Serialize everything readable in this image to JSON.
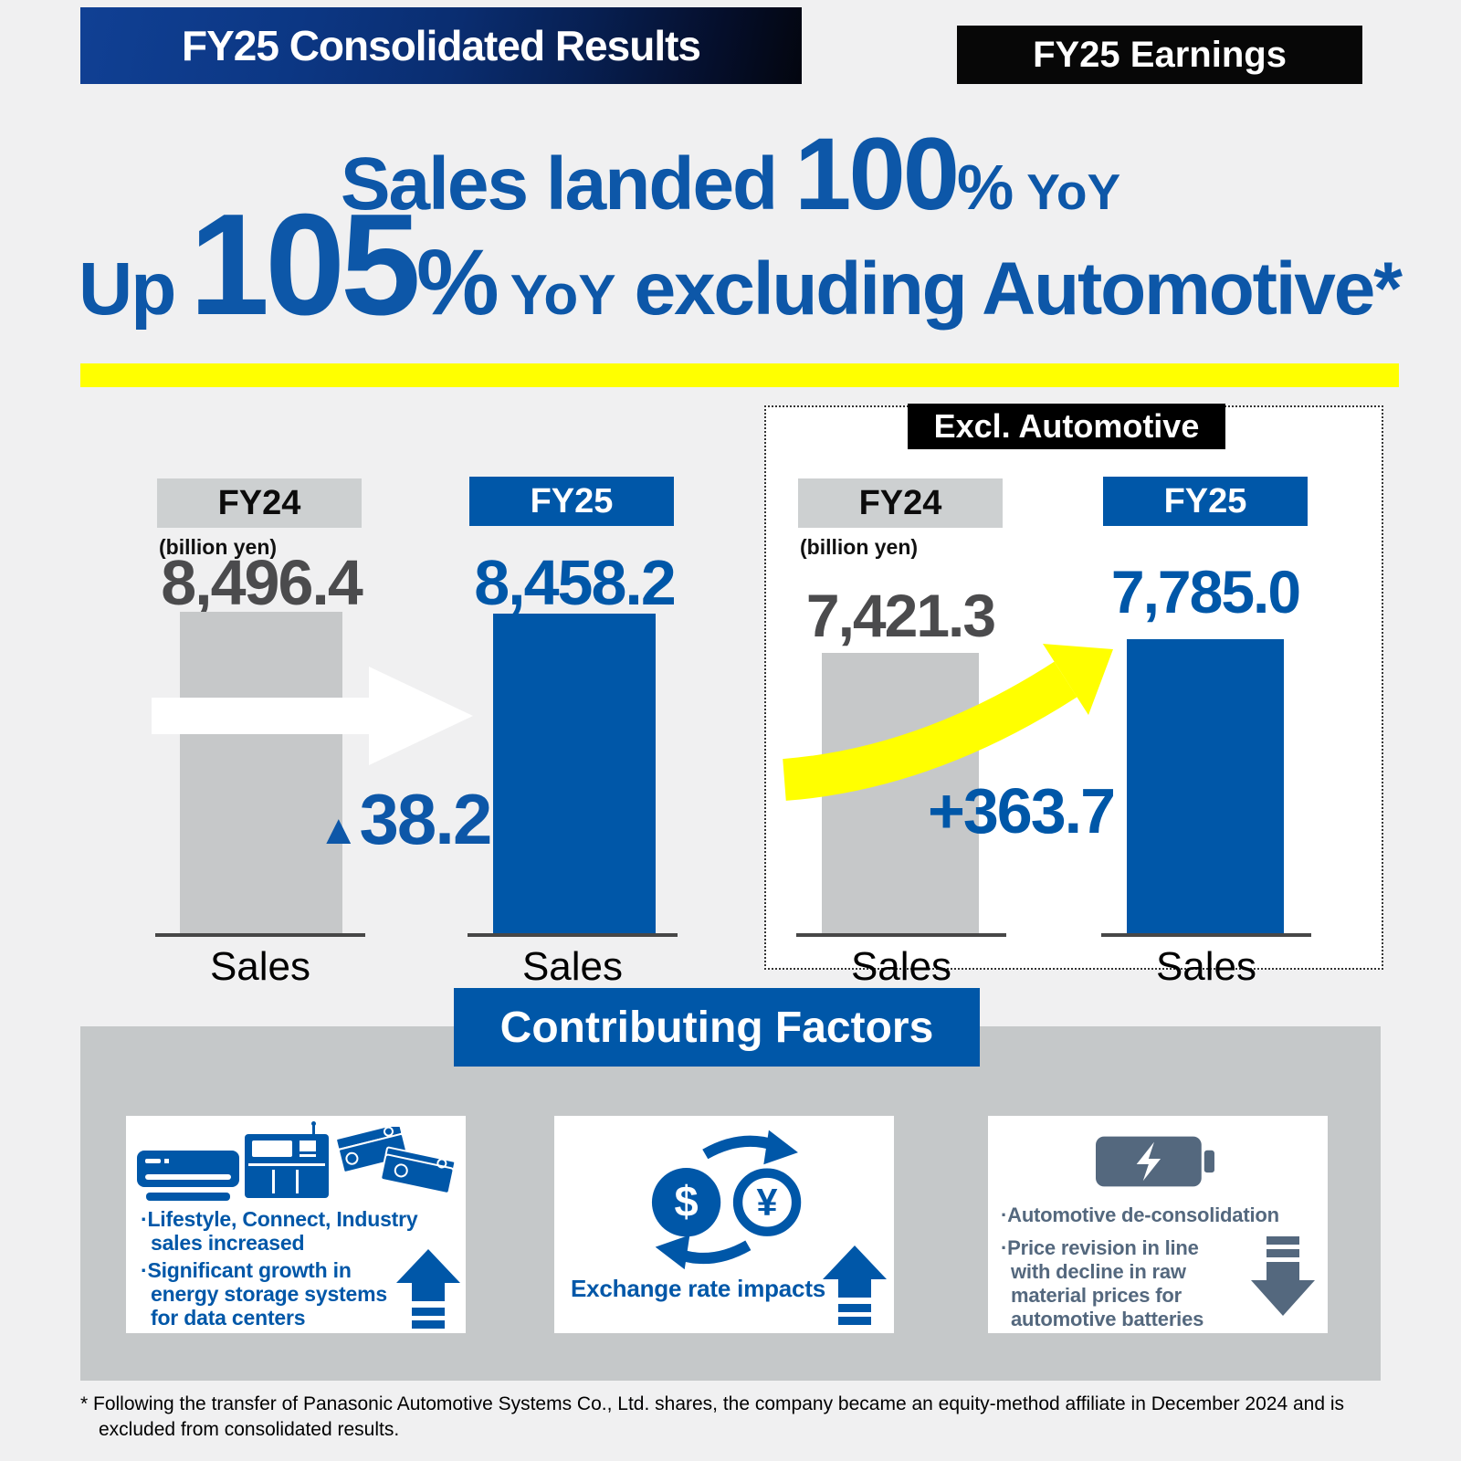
{
  "colors": {
    "accent_blue": "#0057a8",
    "headline_blue": "#0d57a8",
    "highlight_yellow": "#ffff00",
    "bar_gray": "#c6c8c9",
    "value_gray": "#4b4b4d",
    "slate": "#54687e",
    "band_gray": "#c5c8c9",
    "banner_navy_gradient": [
      "#104094",
      "#03060f"
    ]
  },
  "header": {
    "banner_title": "FY25 Consolidated Results",
    "badge": "FY25 Earnings"
  },
  "headline": {
    "line1_pre": "Sales landed",
    "line1_value": "100",
    "line1_pct": "%",
    "line1_yoy": "YoY",
    "line2_up": "Up",
    "line2_value": "105",
    "line2_pct": "%",
    "line2_yoy": "YoY",
    "line2_rest": "excluding Automotive*"
  },
  "charts": {
    "consolidated": {
      "col1_tag": "FY24",
      "col2_tag": "FY25",
      "unit": "(billion yen)",
      "col1_value": "8,496.4",
      "col2_value": "8,458.2",
      "delta_mark": "▲",
      "delta_value": "38.2",
      "col1_axis": "Sales",
      "col2_axis": "Sales"
    },
    "excl_automotive": {
      "title": "Excl. Automotive",
      "col1_tag": "FY24",
      "col2_tag": "FY25",
      "unit": "(billion yen)",
      "col1_value": "7,421.3",
      "col2_value": "7,785.0",
      "delta_value": "+363.7",
      "col1_axis": "Sales",
      "col2_axis": "Sales"
    }
  },
  "chart_data": [
    {
      "type": "bar",
      "title": "FY25 Consolidated Results",
      "categories": [
        "FY24 Sales",
        "FY25 Sales"
      ],
      "values": [
        8496.4,
        8458.2
      ],
      "unit": "billion yen",
      "delta": "▲38.2",
      "ylim": [
        0,
        8600
      ],
      "grid": false,
      "legend_position": "none"
    },
    {
      "type": "bar",
      "title": "Excl. Automotive",
      "categories": [
        "FY24 Sales",
        "FY25 Sales"
      ],
      "values": [
        7421.3,
        7785.0
      ],
      "unit": "billion yen",
      "delta": "+363.7",
      "ylim": [
        0,
        8600
      ],
      "grid": false,
      "legend_position": "none"
    }
  ],
  "factors": {
    "title": "Contributing Factors",
    "card1": {
      "bullet1": "·Lifestyle, Connect, Industry sales increased",
      "bullet2": "·Significant growth in energy storage systems for data centers",
      "direction": "up"
    },
    "card2": {
      "label": "Exchange rate impacts",
      "symbol_left": "$",
      "symbol_right": "¥",
      "direction": "up"
    },
    "card3": {
      "bullet1": "·Automotive de-consolidation",
      "bullet2": "·Price revision in line with decline in raw material prices for automotive batteries",
      "direction": "down"
    }
  },
  "footnote": "* Following the transfer of Panasonic Automotive Systems Co., Ltd. shares, the company became an equity-method affiliate in December 2024 and is excluded from consolidated results."
}
